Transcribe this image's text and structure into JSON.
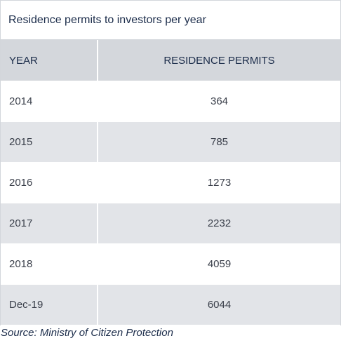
{
  "chart_data": {
    "type": "table",
    "title": "Residence permits to investors per year",
    "columns": [
      "YEAR",
      "RESIDENCE PERMITS"
    ],
    "rows": [
      {
        "year": "2014",
        "permits": 364
      },
      {
        "year": "2015",
        "permits": 785
      },
      {
        "year": "2016",
        "permits": 1273
      },
      {
        "year": "2017",
        "permits": 2232
      },
      {
        "year": "2018",
        "permits": 4059
      },
      {
        "year": "Dec-19",
        "permits": 6044
      }
    ],
    "source": "Source: Ministry of Citizen Protection"
  },
  "colors": {
    "header_bg": "#d4d7dc",
    "stripe_bg": "#e2e4e8",
    "title_text": "#1b2c4a",
    "body_text": "#3a3f4a"
  }
}
